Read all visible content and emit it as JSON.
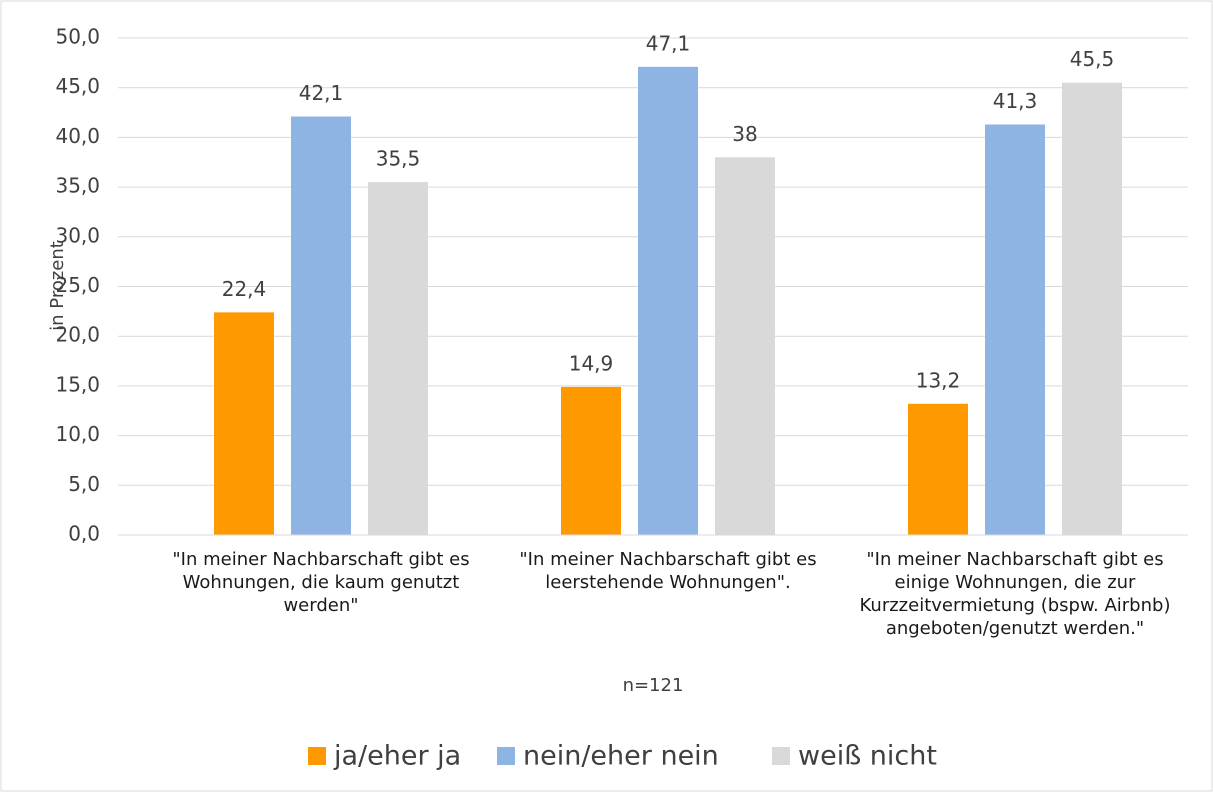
{
  "chart_data": {
    "type": "bar",
    "y_label": "in Prozent",
    "x_label": "n=121",
    "categories": [
      "\"In meiner Nachbarschaft gibt es Wohnungen, die kaum genutzt werden\"",
      "\"In meiner Nachbarschaft gibt es leerstehende  Wohnungen\".",
      "\"In meiner Nachbarschaft gibt es einige Wohnungen, die zur Kurzzeitvermietung (bspw. Airbnb) angeboten/genutzt werden.\""
    ],
    "series": [
      {
        "name": "ja/eher ja",
        "color": "#ff9900",
        "values": [
          22.4,
          14.9,
          13.2
        ],
        "value_labels": [
          "22,4",
          "14,9",
          "13,2"
        ]
      },
      {
        "name": "nein/eher nein",
        "color": "#8eb4e3",
        "values": [
          42.1,
          47.1,
          41.3
        ],
        "value_labels": [
          "42,1",
          "47,1",
          "41,3"
        ]
      },
      {
        "name": "weiß nicht",
        "color": "#d9d9d9",
        "values": [
          35.5,
          38,
          45.5
        ],
        "value_labels": [
          "35,5",
          "38",
          "45,5"
        ]
      }
    ],
    "ylim": [
      0,
      50
    ],
    "yticks": [
      {
        "value": 0,
        "label": "0,0"
      },
      {
        "value": 5,
        "label": "5,0"
      },
      {
        "value": 10,
        "label": "10,0"
      },
      {
        "value": 15,
        "label": "15,0"
      },
      {
        "value": 20,
        "label": "20,0"
      },
      {
        "value": 25,
        "label": "25,0"
      },
      {
        "value": 30,
        "label": "30,0"
      },
      {
        "value": 35,
        "label": "35,0"
      },
      {
        "value": 40,
        "label": "40,0"
      },
      {
        "value": 45,
        "label": "45,0"
      },
      {
        "value": 50,
        "label": "50,0"
      }
    ],
    "grid": true,
    "legend": "bottom"
  }
}
